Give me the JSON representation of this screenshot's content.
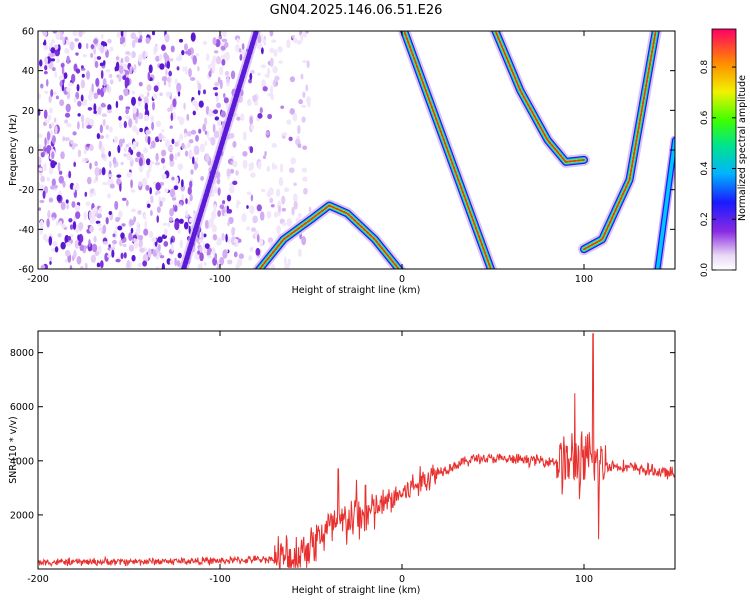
{
  "title": "GN04.2025.146.06.51.E26",
  "chart_data": [
    {
      "type": "heatmap",
      "xlabel": "Height of straight line (km)",
      "ylabel": "Frequency (Hz)",
      "xlim": [
        -200,
        150
      ],
      "ylim": [
        -60,
        60
      ],
      "xticks": [
        "-200",
        "-100",
        "0",
        "100"
      ],
      "yticks": [
        "60",
        "40",
        "20",
        "0",
        "-20",
        "-40",
        "-60"
      ],
      "colorbar": {
        "label": "Normalized spectral amplitude",
        "ticks": [
          "0.8",
          "0.6",
          "0.4",
          "0.2",
          "0.0"
        ],
        "range": [
          0,
          0.95
        ]
      },
      "traces": [
        {
          "points": [
            [
              -120,
              -60
            ],
            [
              -80,
              60
            ]
          ],
          "amplitude": 0.2,
          "noisy": true
        },
        {
          "points": [
            [
              -80,
              -62
            ],
            [
              -65,
              -45
            ],
            [
              -50,
              -35
            ],
            [
              -40,
              -28
            ],
            [
              -30,
              -32
            ],
            [
              -15,
              -45
            ],
            [
              0,
              -62
            ]
          ],
          "amplitude": 0.85
        },
        {
          "points": [
            [
              0,
              63
            ],
            [
              25,
              0
            ],
            [
              50,
              -63
            ]
          ],
          "amplitude": 0.85
        },
        {
          "points": [
            [
              50,
              63
            ],
            [
              65,
              30
            ],
            [
              80,
              5
            ],
            [
              90,
              -6
            ],
            [
              100,
              -5
            ]
          ],
          "amplitude": 0.85
        },
        {
          "points": [
            [
              100,
              -50
            ],
            [
              110,
              -45
            ],
            [
              125,
              -15
            ],
            [
              140,
              63
            ]
          ],
          "amplitude": 0.85
        },
        {
          "points": [
            [
              140,
              -63
            ],
            [
              150,
              5
            ]
          ],
          "amplitude": 0.3
        }
      ]
    },
    {
      "type": "line",
      "xlabel": "Height of straight line (km)",
      "ylabel": "SNR (10 * v/v)",
      "xlim": [
        -200,
        150
      ],
      "ylim": [
        0,
        8800
      ],
      "xticks": [
        "-200",
        "-100",
        "0",
        "100"
      ],
      "yticks": [
        "8000",
        "6000",
        "4000",
        "2000"
      ],
      "color": "#e8302e",
      "envelope": [
        {
          "x": -200,
          "y": 250
        },
        {
          "x": -100,
          "y": 300
        },
        {
          "x": -60,
          "y": 400
        },
        {
          "x": -40,
          "y": 1500
        },
        {
          "x": -20,
          "y": 2000
        },
        {
          "x": 0,
          "y": 2800
        },
        {
          "x": 20,
          "y": 3600
        },
        {
          "x": 40,
          "y": 4100
        },
        {
          "x": 60,
          "y": 4050
        },
        {
          "x": 80,
          "y": 4000
        },
        {
          "x": 100,
          "y": 3900
        },
        {
          "x": 120,
          "y": 3800
        },
        {
          "x": 150,
          "y": 3500
        }
      ],
      "peaks": [
        {
          "x": -35,
          "y": 3700
        },
        {
          "x": -25,
          "y": 3300
        },
        {
          "x": -20,
          "y": 3100
        },
        {
          "x": 95,
          "y": 6500
        },
        {
          "x": 105,
          "y": 8700
        },
        {
          "x": 108,
          "y": 1100
        }
      ]
    }
  ]
}
